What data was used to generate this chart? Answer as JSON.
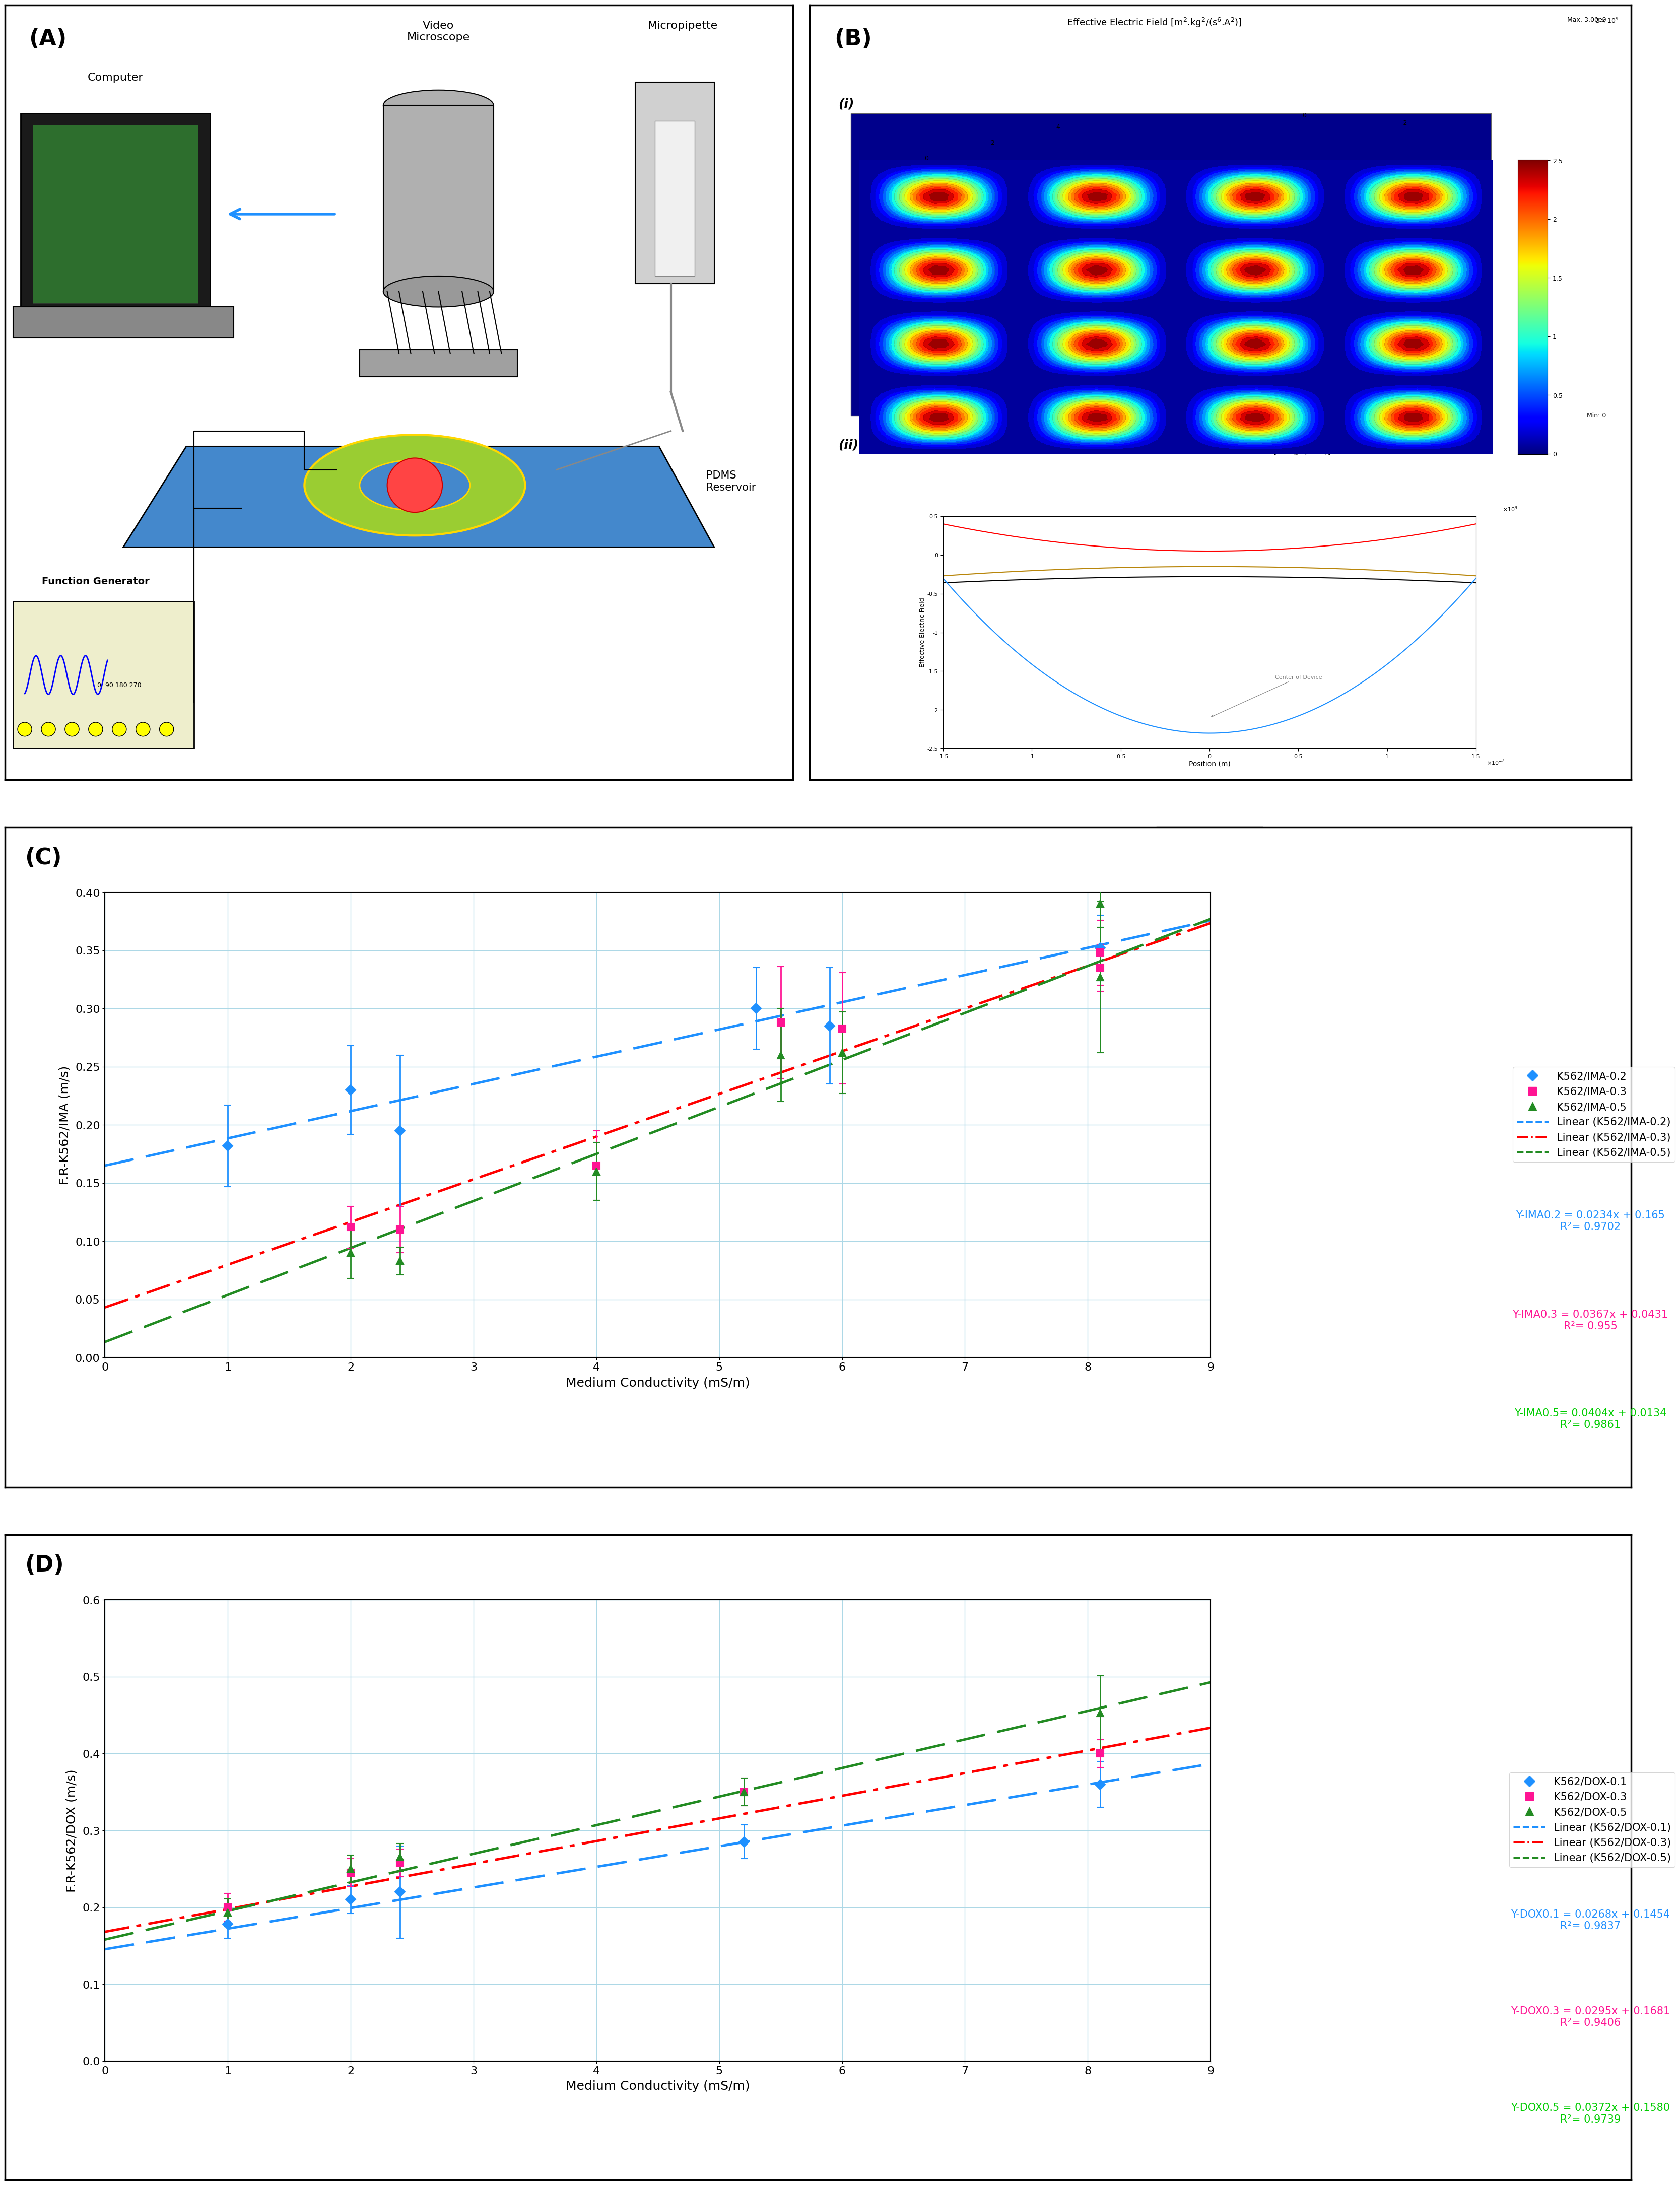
{
  "panel_C": {
    "xlabel": "Medium Conductivity (mS/m)",
    "ylabel": "F.R-K562/IMA (m/s)",
    "xlim": [
      0,
      9
    ],
    "ylim": [
      0,
      0.4
    ],
    "xticks": [
      0,
      1,
      2,
      3,
      4,
      5,
      6,
      7,
      8,
      9
    ],
    "yticks": [
      0,
      0.05,
      0.1,
      0.15,
      0.2,
      0.25,
      0.3,
      0.35,
      0.4
    ],
    "series": [
      {
        "label": "K562/IMA-0.2",
        "color": "#1E90FF",
        "marker": "D",
        "markersize": 10,
        "x": [
          1.0,
          2.0,
          2.4,
          5.3,
          5.9,
          8.1
        ],
        "y": [
          0.182,
          0.23,
          0.195,
          0.3,
          0.285,
          0.352
        ],
        "yerr": [
          0.035,
          0.038,
          0.065,
          0.035,
          0.05,
          0.028
        ]
      },
      {
        "label": "K562/IMA-0.3",
        "color": "#FF1493",
        "marker": "s",
        "markersize": 10,
        "x": [
          2.0,
          2.4,
          4.0,
          5.5,
          6.0,
          8.1,
          8.1
        ],
        "y": [
          0.112,
          0.11,
          0.165,
          0.288,
          0.283,
          0.348,
          0.335
        ],
        "yerr": [
          0.018,
          0.02,
          0.03,
          0.048,
          0.048,
          0.028,
          0.02
        ]
      },
      {
        "label": "K562/IMA-0.5",
        "color": "#228B22",
        "marker": "^",
        "markersize": 10,
        "x": [
          2.0,
          2.4,
          4.0,
          5.5,
          6.0,
          8.1,
          8.1
        ],
        "y": [
          0.09,
          0.083,
          0.16,
          0.26,
          0.262,
          0.327,
          0.39
        ],
        "yerr": [
          0.022,
          0.012,
          0.025,
          0.04,
          0.035,
          0.065,
          0.02
        ]
      }
    ],
    "fit_lines": [
      {
        "label": "Linear (K562/IMA-0.2)",
        "color": "#1E90FF",
        "style": "--",
        "slope": 0.0234,
        "intercept": 0.165,
        "eq_text": "Y-IMA0.2 = 0.0234x + 0.165",
        "r2_text": "R²= 0.9702",
        "eq_color": "#1E90FF"
      },
      {
        "label": "Linear (K562/IMA-0.3)",
        "color": "#FF0000",
        "style": "-.",
        "slope": 0.0367,
        "intercept": 0.0431,
        "eq_text": "Y-IMA0.3 = 0.0367x + 0.0431",
        "r2_text": "R²= 0.955",
        "eq_color": "#FF1493"
      },
      {
        "label": "Linear (K562/IMA-0.5)",
        "color": "#228B22",
        "style": "--",
        "slope": 0.0404,
        "intercept": 0.0134,
        "eq_text": "Y-IMA0.5= 0.0404x + 0.0134",
        "r2_text": "R²= 0.9861",
        "eq_color": "#00CC00"
      }
    ]
  },
  "panel_D": {
    "xlabel": "Medium Conductivity (mS/m)",
    "ylabel": "F.R-K562/DOX (m/s)",
    "xlim": [
      0,
      9
    ],
    "ylim": [
      0,
      0.6
    ],
    "xticks": [
      0,
      1,
      2,
      3,
      4,
      5,
      6,
      7,
      8,
      9
    ],
    "yticks": [
      0,
      0.1,
      0.2,
      0.3,
      0.4,
      0.5,
      0.6
    ],
    "series": [
      {
        "label": "K562/DOX-0.1",
        "color": "#1E90FF",
        "marker": "D",
        "markersize": 10,
        "x": [
          1.0,
          2.0,
          2.4,
          5.2,
          8.1
        ],
        "y": [
          0.178,
          0.21,
          0.22,
          0.285,
          0.36
        ],
        "yerr": [
          0.018,
          0.018,
          0.06,
          0.022,
          0.03
        ]
      },
      {
        "label": "K562/DOX-0.3",
        "color": "#FF1493",
        "marker": "s",
        "markersize": 10,
        "x": [
          1.0,
          2.0,
          2.4,
          5.2,
          8.1
        ],
        "y": [
          0.2,
          0.245,
          0.258,
          0.35,
          0.4
        ],
        "yerr": [
          0.018,
          0.018,
          0.018,
          0.018,
          0.018
        ]
      },
      {
        "label": "K562/DOX-0.5",
        "color": "#228B22",
        "marker": "^",
        "markersize": 10,
        "x": [
          1.0,
          2.0,
          2.4,
          5.2,
          8.1
        ],
        "y": [
          0.193,
          0.25,
          0.265,
          0.35,
          0.453
        ],
        "yerr": [
          0.018,
          0.018,
          0.018,
          0.018,
          0.048
        ]
      }
    ],
    "fit_lines": [
      {
        "label": "Linear (K562/DOX-0.1)",
        "color": "#1E90FF",
        "style": "--",
        "slope": 0.0268,
        "intercept": 0.1454,
        "eq_text": "Y-DOX0.1 = 0.0268x + 0.1454",
        "r2_text": "R²= 0.9837",
        "eq_color": "#1E90FF"
      },
      {
        "label": "Linear (K562/DOX-0.3)",
        "color": "#FF0000",
        "style": "-.",
        "slope": 0.0295,
        "intercept": 0.1681,
        "eq_text": "Y-DOX0.3 = 0.0295x + 0.1681",
        "r2_text": "R²= 0.9406",
        "eq_color": "#FF1493"
      },
      {
        "label": "Linear (K562/DOX-0.5)",
        "color": "#228B22",
        "style": "--",
        "slope": 0.0372,
        "intercept": 0.158,
        "eq_text": "Y-DOX0.5 = 0.0372x + 0.1580",
        "r2_text": "R²= 0.9739",
        "eq_color": "#00CC00"
      }
    ]
  },
  "bg_color": "#ffffff",
  "grid_color": "#ADD8E6",
  "panel_label_fontsize": 32,
  "axis_label_fontsize": 18,
  "tick_fontsize": 16,
  "legend_fontsize": 15,
  "eq_fontsize": 15
}
